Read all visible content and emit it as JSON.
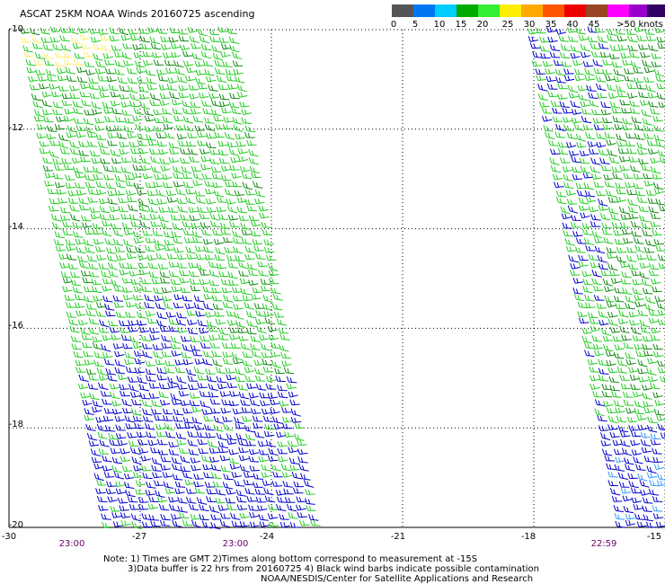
{
  "title": "ASCAT 25KM NOAA Winds 20160725 ascending",
  "legend": {
    "swatches": [
      {
        "color": "#555555"
      },
      {
        "color": "#0077ee"
      },
      {
        "color": "#00ccff"
      },
      {
        "color": "#00aa00"
      },
      {
        "color": "#33ee33"
      },
      {
        "color": "#ffee00"
      },
      {
        "color": "#ffaa00"
      },
      {
        "color": "#ff5500"
      },
      {
        "color": "#ee0000"
      },
      {
        "color": "#994422"
      },
      {
        "color": "#ff00ff"
      },
      {
        "color": "#9900cc"
      },
      {
        "color": "#330066"
      }
    ],
    "labels": [
      "0",
      "5",
      "10",
      "15",
      "20",
      "25",
      "30",
      "35",
      "40",
      "45",
      ">50 knots"
    ]
  },
  "map": {
    "lat_ticks": [
      "-10",
      "-12",
      "-14",
      "-16",
      "-18",
      "-20"
    ],
    "lon_ticks": [
      "-30",
      "-27",
      "-24",
      "-21",
      "-18",
      "-15"
    ],
    "time_labels": [
      "23:00",
      "23:00",
      "22:59"
    ],
    "lat_range": [
      -20,
      -10
    ],
    "lon_range": [
      -30,
      -15
    ],
    "grid": true,
    "barb_colors": {
      "green": "#22cc22",
      "dark_green": "#118811",
      "blue": "#0000cc",
      "light_blue": "#3399ff",
      "yellow": "#ffee66"
    }
  },
  "notes": {
    "line1": "Note: 1) Times are GMT 2)Times along bottom correspond to measurement at -15S",
    "line2": "3)Data buffer is 22 hrs from 20160725 4) Black wind barbs indicate possible contamination",
    "line3": "NOAA/NESDIS/Center for Satellite Applications and Research"
  }
}
